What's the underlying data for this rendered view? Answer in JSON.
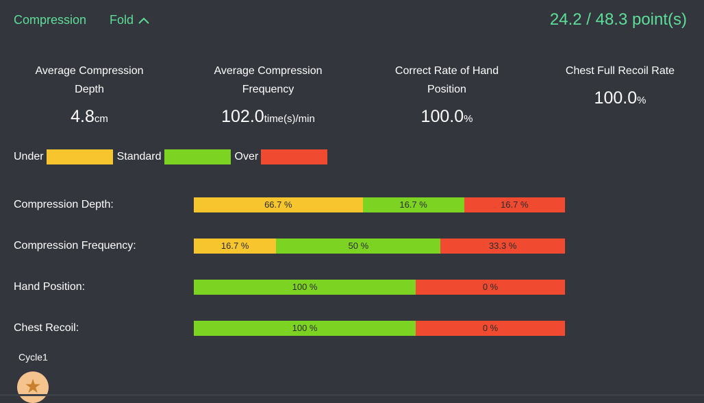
{
  "header": {
    "section_title": "Compression",
    "fold_label": "Fold",
    "score_text": "24.2 / 48.3 point(s)"
  },
  "colors": {
    "background": "#34363E",
    "accent_green_text": "#5DDE98",
    "under": "#F7C52D",
    "standard": "#7DD321",
    "over": "#F04B31",
    "segment_text": "#2B2B2B",
    "star_circle": "#F5C48E",
    "star": "#C9802C"
  },
  "stats": {
    "items": [
      {
        "title": "Average Compression Depth",
        "value": "4.8",
        "unit": "cm"
      },
      {
        "title": "Average Compression Frequency",
        "value": "102.0",
        "unit": "time(s)/min"
      },
      {
        "title": "Correct Rate of Hand Position",
        "value": "100.0",
        "unit": "%"
      },
      {
        "title": "Chest Full Recoil Rate",
        "value": "100.0",
        "unit": "%"
      }
    ]
  },
  "legend": {
    "items": [
      {
        "label": "Under",
        "color_key": "under"
      },
      {
        "label": "Standard",
        "color_key": "standard"
      },
      {
        "label": "Over",
        "color_key": "over"
      }
    ]
  },
  "chart_data": {
    "type": "bar",
    "subtype": "horizontal-stacked",
    "categories": [
      "Under",
      "Standard",
      "Over"
    ],
    "rows": [
      {
        "label": "Compression Depth:",
        "segments": [
          {
            "category": "Under",
            "value": 66.7,
            "value_label": "66.7 %",
            "width_pct": 45.5
          },
          {
            "category": "Standard",
            "value": 16.7,
            "value_label": "16.7 %",
            "width_pct": 27.3
          },
          {
            "category": "Over",
            "value": 16.7,
            "value_label": "16.7 %",
            "width_pct": 27.2
          }
        ]
      },
      {
        "label": "Compression Frequency:",
        "segments": [
          {
            "category": "Under",
            "value": 16.7,
            "value_label": "16.7 %",
            "width_pct": 22.2
          },
          {
            "category": "Standard",
            "value": 50,
            "value_label": "50 %",
            "width_pct": 44.3
          },
          {
            "category": "Over",
            "value": 33.3,
            "value_label": "33.3 %",
            "width_pct": 33.5
          }
        ]
      },
      {
        "label": "Hand Position:",
        "segments": [
          {
            "category": "Standard",
            "value": 100,
            "value_label": "100 %",
            "width_pct": 59.8
          },
          {
            "category": "Over",
            "value": 0,
            "value_label": "0 %",
            "width_pct": 40.2
          }
        ]
      },
      {
        "label": "Chest Recoil:",
        "segments": [
          {
            "category": "Standard",
            "value": 100,
            "value_label": "100 %",
            "width_pct": 59.8
          },
          {
            "category": "Over",
            "value": 0,
            "value_label": "0 %",
            "width_pct": 40.2
          }
        ]
      }
    ]
  },
  "footer": {
    "cycle_label": "Cycle1",
    "star_icon": "star"
  }
}
